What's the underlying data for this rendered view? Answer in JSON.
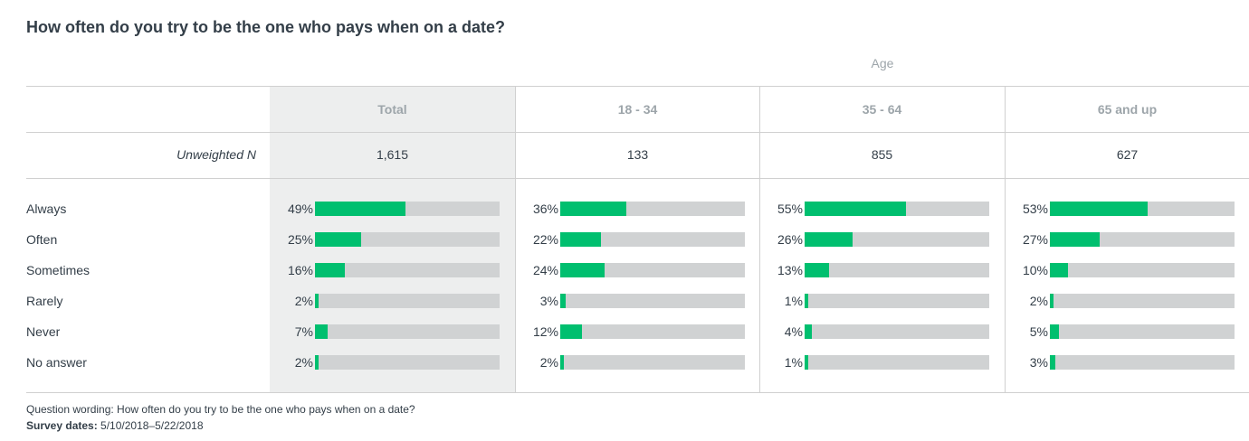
{
  "title": "How often do you try to be the one who pays when on a date?",
  "group_label": "Age",
  "unweighted_label": "Unweighted N",
  "footer": {
    "question_wording": "Question wording: How often do you try to be the one who pays when on a date?",
    "survey_dates_label": "Survey dates:",
    "survey_dates_value": "5/10/2018–5/22/2018"
  },
  "colors": {
    "fill": "#00bf6f",
    "track": "#d0d2d3",
    "total_bg": "#edeeee"
  },
  "chart_data": {
    "type": "bar",
    "categories": [
      "Always",
      "Often",
      "Sometimes",
      "Rarely",
      "Never",
      "No answer"
    ],
    "series": [
      {
        "name": "Total",
        "n": "1,615",
        "values": [
          49,
          25,
          16,
          2,
          7,
          2
        ]
      },
      {
        "name": "18 - 34",
        "n": "133",
        "values": [
          36,
          22,
          24,
          3,
          12,
          2
        ]
      },
      {
        "name": "35 - 64",
        "n": "855",
        "values": [
          55,
          26,
          13,
          1,
          4,
          1
        ]
      },
      {
        "name": "65 and up",
        "n": "627",
        "values": [
          53,
          27,
          10,
          2,
          5,
          3
        ]
      }
    ],
    "ylim": [
      0,
      100
    ],
    "unit": "%"
  }
}
